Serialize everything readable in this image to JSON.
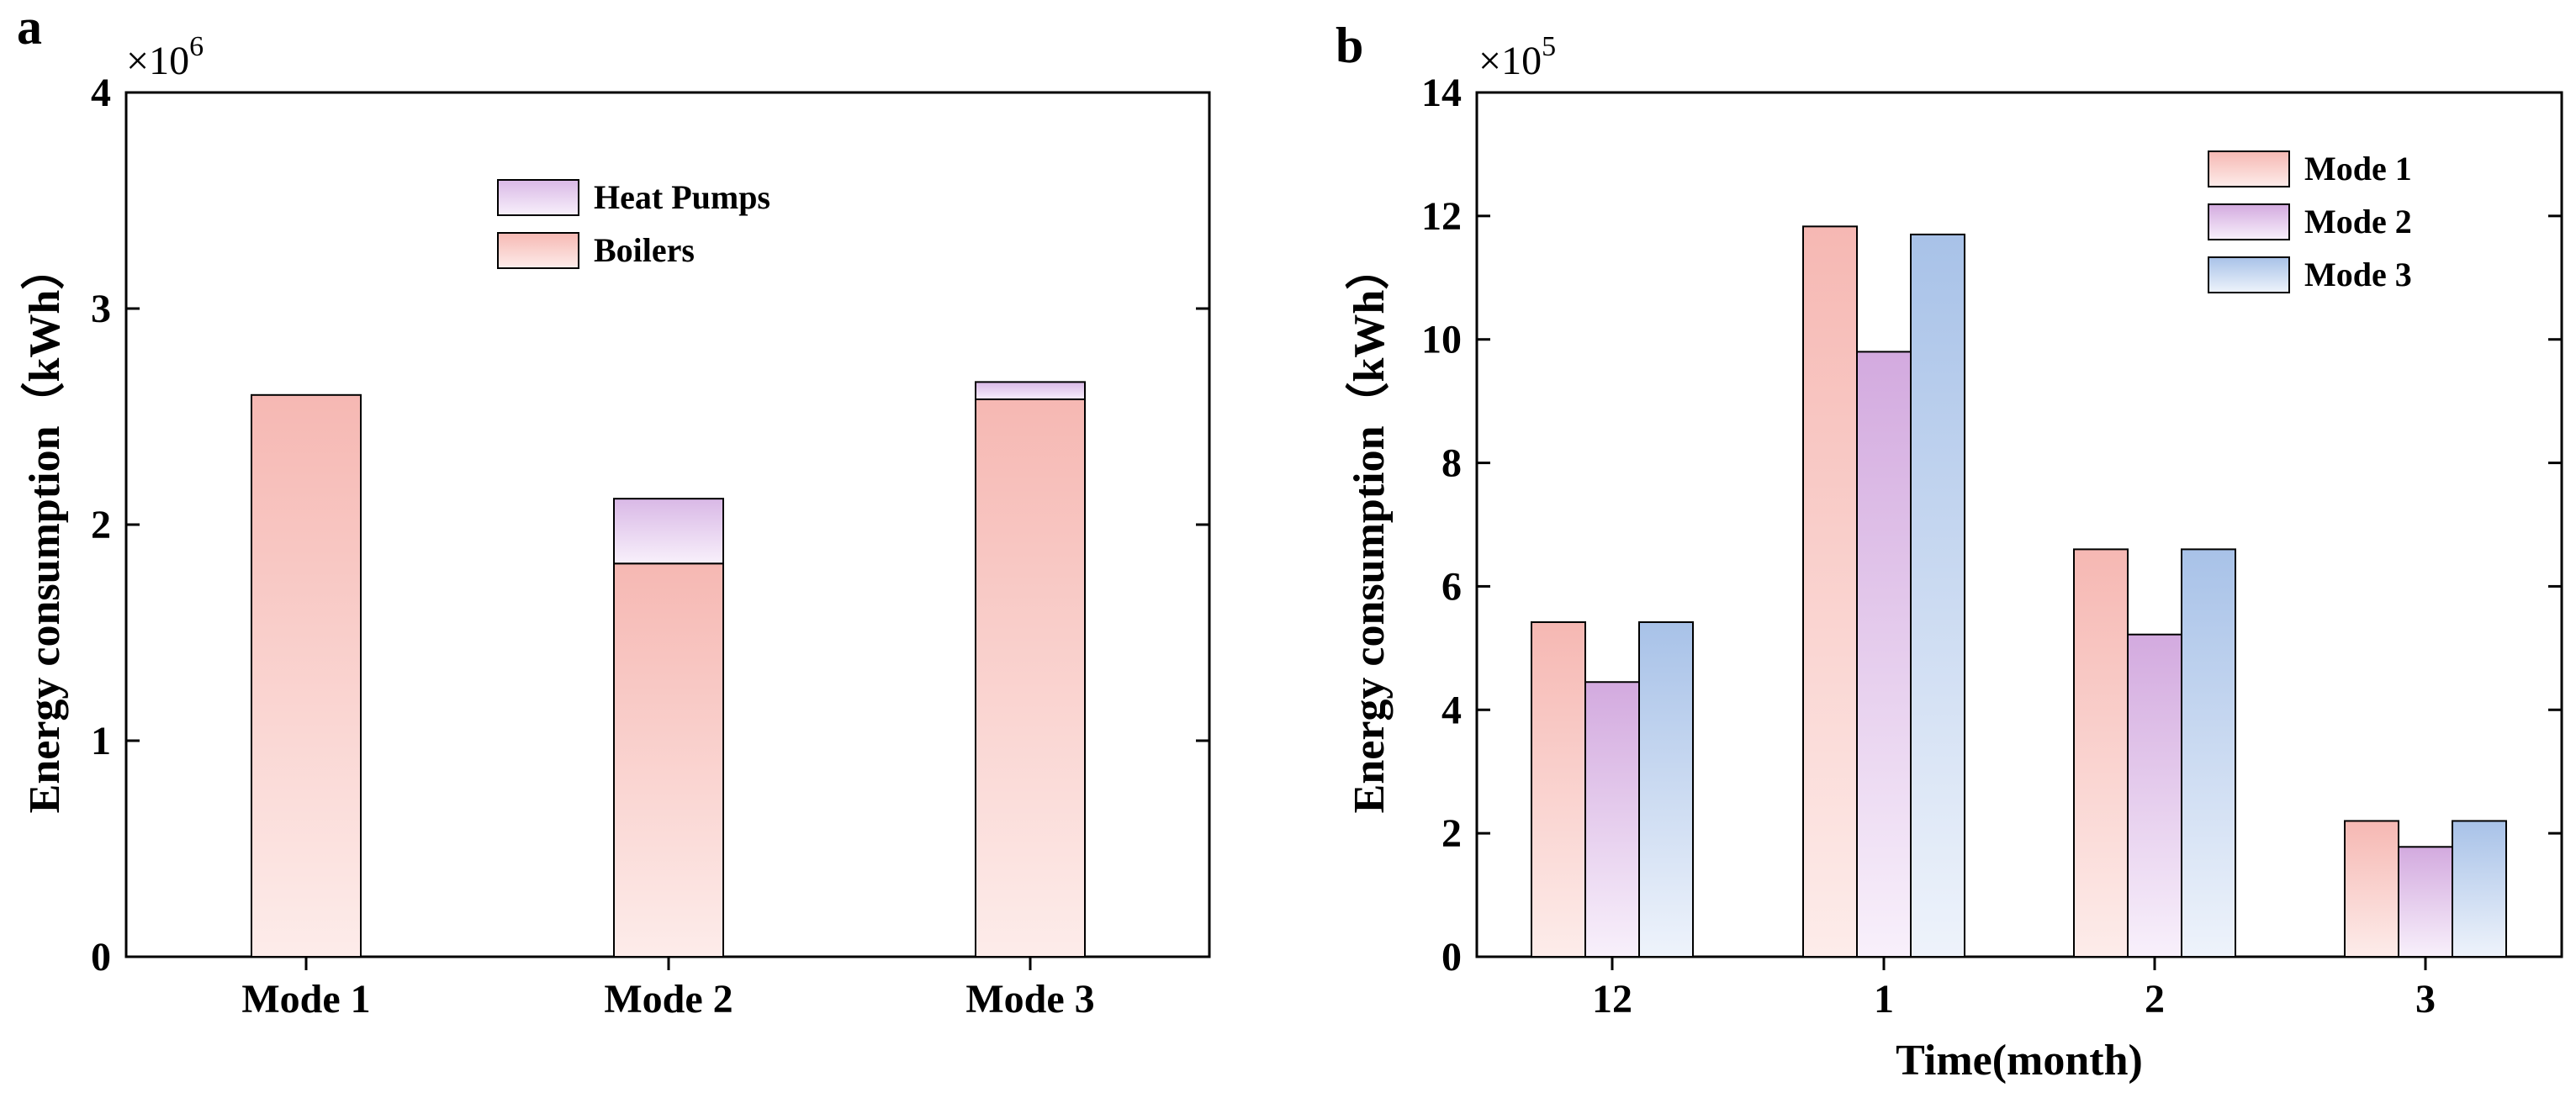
{
  "chart_data": [
    {
      "panel_label": "a",
      "type": "bar",
      "stacked": true,
      "categories": [
        "Mode 1",
        "Mode 2",
        "Mode 3"
      ],
      "series": [
        {
          "name": "Boilers",
          "values": [
            2.6,
            1.82,
            2.58
          ],
          "color_top": "#f6b8b3",
          "color_bottom": "#fdecea"
        },
        {
          "name": "Heat Pumps",
          "values": [
            0.0,
            0.3,
            0.08
          ],
          "color_top": "#d9b8e6",
          "color_bottom": "#f8f0fb"
        }
      ],
      "legend": [
        {
          "label": "Heat Pumps",
          "color_top": "#d9b8e6",
          "color_bottom": "#f8f0fb"
        },
        {
          "label": "Boilers",
          "color_top": "#f6b8b3",
          "color_bottom": "#fdecea"
        }
      ],
      "scale_label": "×10",
      "scale_exponent": "6",
      "ylabel": "Energy consumption（kWh）",
      "xlabel": "",
      "ylim": [
        0,
        4
      ],
      "yticks": [
        "0",
        "1",
        "2",
        "3",
        "4"
      ],
      "legend_position": "top-center"
    },
    {
      "panel_label": "b",
      "type": "bar",
      "stacked": false,
      "categories": [
        "12",
        "1",
        "2",
        "3"
      ],
      "series": [
        {
          "name": "Mode 1",
          "values": [
            5.42,
            11.83,
            6.6,
            2.2
          ],
          "color_top": "#f6b8b3",
          "color_bottom": "#fdecea"
        },
        {
          "name": "Mode 2",
          "values": [
            4.45,
            9.8,
            5.22,
            1.78
          ],
          "color_top": "#d3aadf",
          "color_bottom": "#f8f0fb"
        },
        {
          "name": "Mode 3",
          "values": [
            5.42,
            11.7,
            6.6,
            2.2
          ],
          "color_top": "#a8c2e8",
          "color_bottom": "#eef3fb"
        }
      ],
      "legend": [
        {
          "label": "Mode 1",
          "color_top": "#f6b8b3",
          "color_bottom": "#fdecea"
        },
        {
          "label": "Mode 2",
          "color_top": "#d3aadf",
          "color_bottom": "#f8f0fb"
        },
        {
          "label": "Mode 3",
          "color_top": "#a8c2e8",
          "color_bottom": "#eef3fb"
        }
      ],
      "scale_label": "×10",
      "scale_exponent": "5",
      "ylabel": "Energy consumption（kWh）",
      "xlabel": "Time(month)",
      "ylim": [
        0,
        14
      ],
      "yticks": [
        "0",
        "2",
        "4",
        "6",
        "8",
        "10",
        "12",
        "14"
      ],
      "legend_position": "top-right"
    }
  ]
}
